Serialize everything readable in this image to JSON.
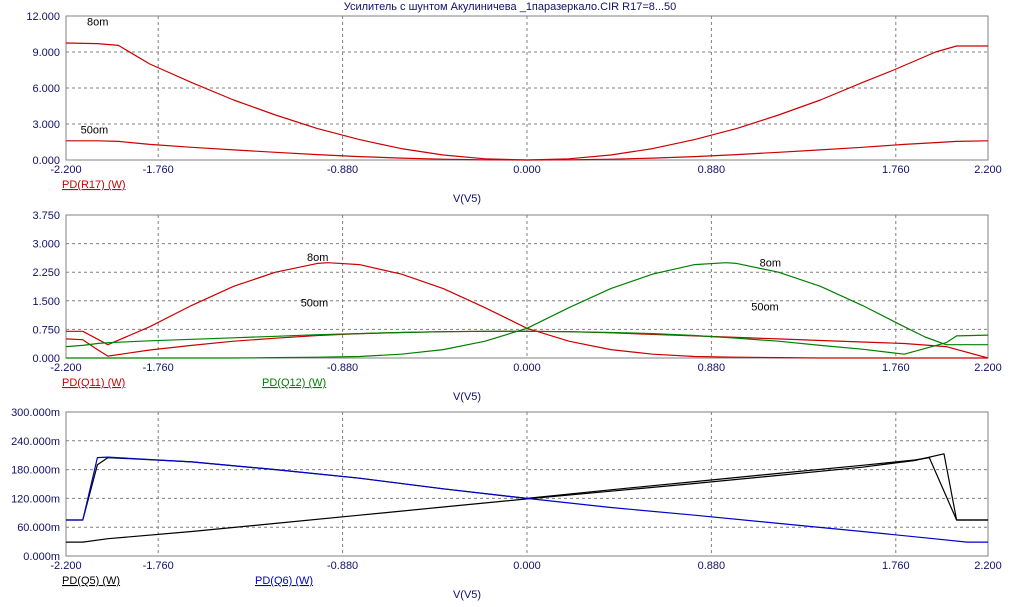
{
  "title": "Усилитель с шунтом  Акулиничева _1паразеркало.CIR R17=8...50",
  "chart_data": [
    {
      "type": "line",
      "xlabel": "V(V5)",
      "xlim": [
        -2.2,
        2.2
      ],
      "ylim": [
        0,
        12
      ],
      "x_ticks": [
        "-2.200",
        "-1.760",
        "-0.880",
        "0.000",
        "0.880",
        "1.760",
        "2.200"
      ],
      "y_ticks": [
        "12.000",
        "9.000",
        "6.000",
        "3.000",
        "0.000"
      ],
      "legend": [
        {
          "label": "PD(R17) (W)",
          "color": "#cc0000"
        }
      ],
      "annotations": [
        {
          "text": "8om",
          "x": -2.1,
          "y": 11.2
        },
        {
          "text": "50om",
          "x": -2.13,
          "y": 2.2
        }
      ],
      "series": [
        {
          "name": "PD(R17) (W)",
          "color": "#cc0000",
          "x": [
            -2.2,
            -2.05,
            -1.95,
            -1.8,
            -1.6,
            -1.4,
            -1.2,
            -1.0,
            -0.8,
            -0.6,
            -0.4,
            -0.2,
            0,
            0.2,
            0.4,
            0.6,
            0.8,
            1.0,
            1.2,
            1.4,
            1.6,
            1.75,
            1.95,
            2.05,
            2.2
          ],
          "y": [
            9.75,
            9.7,
            9.55,
            8.0,
            6.45,
            5.0,
            3.75,
            2.62,
            1.7,
            0.95,
            0.42,
            0.1,
            0,
            0.1,
            0.42,
            0.95,
            1.7,
            2.62,
            3.75,
            5.0,
            6.45,
            7.5,
            9.0,
            9.5,
            9.5
          ]
        },
        {
          "name": "PD(R17) (W)",
          "color": "#cc0000",
          "x": [
            -2.2,
            -2.05,
            -1.95,
            -1.8,
            -1.6,
            -1.4,
            -1.2,
            -1.0,
            -0.8,
            -0.6,
            -0.4,
            -0.2,
            0,
            0.2,
            0.4,
            0.6,
            0.8,
            1.0,
            1.2,
            1.4,
            1.6,
            1.8,
            1.95,
            2.05,
            2.2
          ],
          "y": [
            1.6,
            1.6,
            1.55,
            1.3,
            1.06,
            0.84,
            0.64,
            0.45,
            0.28,
            0.16,
            0.07,
            0.02,
            0,
            0.02,
            0.07,
            0.16,
            0.28,
            0.45,
            0.64,
            0.84,
            1.06,
            1.3,
            1.45,
            1.55,
            1.6
          ]
        }
      ]
    },
    {
      "type": "line",
      "xlabel": "V(V5)",
      "xlim": [
        -2.2,
        2.2
      ],
      "ylim": [
        0,
        3.75
      ],
      "x_ticks": [
        "-2.200",
        "-1.760",
        "-0.880",
        "0.000",
        "0.880",
        "1.760",
        "2.200"
      ],
      "y_ticks": [
        "3.750",
        "3.000",
        "2.250",
        "1.500",
        "0.750",
        "0.000"
      ],
      "legend": [
        {
          "label": "PD(Q11) (W)",
          "color": "#cc0000"
        },
        {
          "label": "PD(Q12) (W)",
          "color": "#008000"
        }
      ],
      "annotations": [
        {
          "text": "8om",
          "x": -1.05,
          "y": 2.55
        },
        {
          "text": "8om",
          "x": 1.11,
          "y": 2.4
        },
        {
          "text": "50om",
          "x": -1.08,
          "y": 1.35
        },
        {
          "text": "50om",
          "x": 1.07,
          "y": 1.25
        }
      ],
      "series": [
        {
          "name": "PD(Q11) (W)",
          "color": "#cc0000",
          "x": [
            -2.2,
            -2.12,
            -2.0,
            -1.8,
            -1.6,
            -1.4,
            -1.2,
            -1.0,
            -0.95,
            -0.8,
            -0.6,
            -0.4,
            -0.2,
            0,
            0.2,
            0.4,
            0.6,
            0.8,
            1.0,
            1.2,
            1.4,
            1.6,
            1.8,
            2.0,
            2.2
          ],
          "y": [
            0.7,
            0.7,
            0.35,
            0.82,
            1.38,
            1.88,
            2.25,
            2.48,
            2.5,
            2.45,
            2.2,
            1.82,
            1.32,
            0.78,
            0.44,
            0.22,
            0.1,
            0.04,
            0.02,
            0.01,
            0,
            0,
            0,
            0,
            0
          ]
        },
        {
          "name": "PD(Q11) (W)",
          "color": "#cc0000",
          "x": [
            -2.2,
            -2.12,
            -2.05,
            -2.0,
            -1.8,
            -1.6,
            -1.4,
            -1.2,
            -1.0,
            -0.8,
            -0.6,
            -0.4,
            -0.2,
            0,
            0.2,
            0.4,
            0.6,
            0.8,
            1.0,
            1.2,
            1.4,
            1.6,
            1.8,
            2.0,
            2.2
          ],
          "y": [
            0.5,
            0.48,
            0.22,
            0.05,
            0.21,
            0.33,
            0.44,
            0.52,
            0.59,
            0.64,
            0.67,
            0.69,
            0.7,
            0.7,
            0.69,
            0.66,
            0.62,
            0.58,
            0.54,
            0.5,
            0.46,
            0.42,
            0.38,
            0.3,
            0.0
          ]
        },
        {
          "name": "PD(Q12) (W)",
          "color": "#008000",
          "x": [
            -2.2,
            -2.0,
            -1.8,
            -1.6,
            -1.4,
            -1.2,
            -1.0,
            -0.8,
            -0.6,
            -0.4,
            -0.2,
            0,
            0.2,
            0.4,
            0.6,
            0.8,
            0.95,
            1.0,
            1.2,
            1.4,
            1.6,
            1.8,
            1.9,
            2.0,
            2.12,
            2.2
          ],
          "y": [
            0,
            0,
            0,
            0,
            0,
            0.01,
            0.02,
            0.04,
            0.1,
            0.22,
            0.44,
            0.78,
            1.32,
            1.82,
            2.2,
            2.45,
            2.5,
            2.48,
            2.25,
            1.88,
            1.38,
            0.82,
            0.55,
            0.35,
            0.35,
            0.35
          ]
        },
        {
          "name": "PD(Q12) (W)",
          "color": "#008000",
          "x": [
            -2.2,
            -2.12,
            -2.05,
            -2.0,
            -1.8,
            -1.6,
            -1.4,
            -1.2,
            -1.0,
            -0.8,
            -0.6,
            -0.4,
            -0.2,
            0,
            0.2,
            0.4,
            0.6,
            0.8,
            1.0,
            1.2,
            1.4,
            1.6,
            1.8,
            2.0,
            2.05,
            2.2
          ],
          "y": [
            0.3,
            0.33,
            0.38,
            0.4,
            0.45,
            0.49,
            0.53,
            0.57,
            0.61,
            0.64,
            0.67,
            0.69,
            0.7,
            0.7,
            0.69,
            0.67,
            0.64,
            0.59,
            0.52,
            0.44,
            0.33,
            0.23,
            0.1,
            0.4,
            0.58,
            0.6
          ]
        }
      ]
    },
    {
      "type": "line",
      "xlabel": "V(V5)",
      "xlim": [
        -2.2,
        2.2
      ],
      "ylim": [
        0,
        300
      ],
      "x_ticks": [
        "-2.200",
        "-1.760",
        "-0.880",
        "0.000",
        "0.880",
        "1.760",
        "2.200"
      ],
      "y_ticks": [
        "300.000m",
        "240.000m",
        "180.000m",
        "120.000m",
        "60.000m",
        "0.000m"
      ],
      "legend": [
        {
          "label": "PD(Q5) (W)",
          "color": "#000000"
        },
        {
          "label": "PD(Q6) (W)",
          "color": "#0000cc"
        }
      ],
      "series": [
        {
          "name": "PD(Q5) (W)",
          "color": "#000000",
          "x": [
            -2.2,
            -2.12,
            -2.0,
            -1.6,
            -1.2,
            -0.8,
            -0.4,
            0,
            0.4,
            0.8,
            1.2,
            1.6,
            1.85,
            1.99,
            2.05,
            2.2
          ],
          "y": [
            29,
            29,
            36,
            51,
            68,
            85,
            102,
            119,
            135,
            151,
            168,
            185,
            199,
            213,
            75,
            75
          ]
        },
        {
          "name": "PD(Q5) (W)",
          "color": "#000000",
          "x": [
            -2.2,
            -2.12,
            -2.05,
            -2.0,
            -1.6,
            -1.2,
            -0.8,
            -0.4,
            0,
            0.4,
            0.8,
            1.2,
            1.6,
            1.85,
            1.92,
            2.05,
            2.2
          ],
          "y": [
            75,
            75,
            190,
            205,
            196,
            180,
            162,
            140,
            120,
            138,
            155,
            172,
            189,
            200,
            205,
            75,
            75
          ]
        },
        {
          "name": "PD(Q6) (W)",
          "color": "#0000cc",
          "x": [
            -2.2,
            -2.12,
            -2.05,
            -2.0,
            -1.6,
            -1.2,
            -0.8,
            -0.4,
            0,
            0.4,
            0.8,
            1.2,
            1.6,
            1.9,
            2.1,
            2.2
          ],
          "y": [
            75,
            75,
            205,
            206,
            196,
            180,
            162,
            140,
            120,
            101,
            85,
            68,
            51,
            38,
            29,
            29
          ]
        }
      ]
    }
  ]
}
